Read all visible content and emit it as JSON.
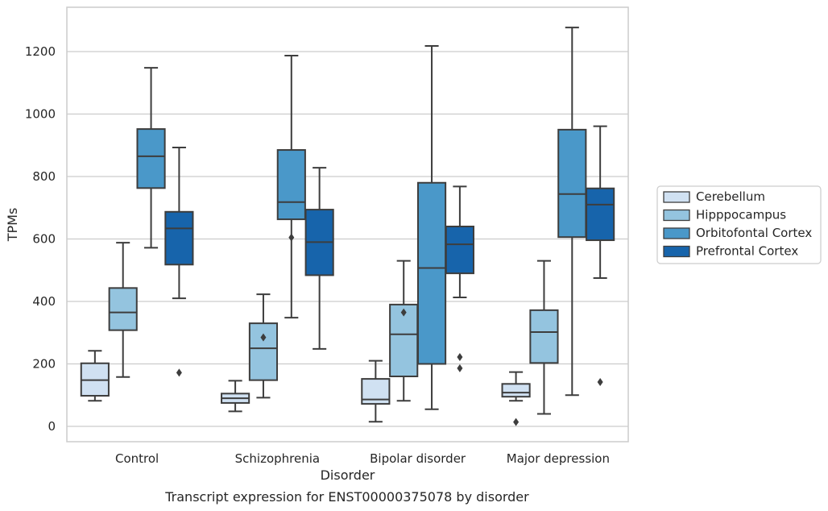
{
  "chart_data": {
    "type": "box",
    "title": "",
    "caption": "Transcript expression for ENST00000375078 by disorder",
    "xlabel": "Disorder",
    "ylabel": "TPMs",
    "ylim": [
      -50,
      1350
    ],
    "yticks": [
      0,
      200,
      400,
      600,
      800,
      1000,
      1200
    ],
    "grid": "horizontal",
    "legend_placement": "right",
    "categories": [
      "Control",
      "Schizophrenia",
      "Bipolar disorder",
      "Major depression"
    ],
    "series": [
      {
        "name": "Cerebellum",
        "color": "#d0e1f2",
        "boxes": [
          {
            "whisker_low": 82,
            "q1": 98,
            "median": 148,
            "q3": 202,
            "whisker_high": 242,
            "outliers": []
          },
          {
            "whisker_low": 48,
            "q1": 75,
            "median": 90,
            "q3": 105,
            "whisker_high": 146,
            "outliers": []
          },
          {
            "whisker_low": 15,
            "q1": 72,
            "median": 86,
            "q3": 152,
            "whisker_high": 210,
            "outliers": []
          },
          {
            "whisker_low": 82,
            "q1": 95,
            "median": 108,
            "q3": 136,
            "whisker_high": 174,
            "outliers": [
              14
            ]
          }
        ]
      },
      {
        "name": "Hipppocampus",
        "color": "#94c4df",
        "boxes": [
          {
            "whisker_low": 158,
            "q1": 308,
            "median": 365,
            "q3": 443,
            "whisker_high": 588,
            "outliers": []
          },
          {
            "whisker_low": 92,
            "q1": 148,
            "median": 250,
            "q3": 330,
            "whisker_high": 423,
            "outliers": [
              285
            ]
          },
          {
            "whisker_low": 82,
            "q1": 160,
            "median": 295,
            "q3": 390,
            "whisker_high": 530,
            "outliers": [
              365
            ]
          },
          {
            "whisker_low": 40,
            "q1": 203,
            "median": 302,
            "q3": 372,
            "whisker_high": 530,
            "outliers": []
          }
        ]
      },
      {
        "name": "Orbitofontal Cortex",
        "color": "#4a98c9",
        "boxes": [
          {
            "whisker_low": 572,
            "q1": 763,
            "median": 865,
            "q3": 952,
            "whisker_high": 1148,
            "outliers": []
          },
          {
            "whisker_low": 348,
            "q1": 663,
            "median": 718,
            "q3": 885,
            "whisker_high": 1187,
            "outliers": [
              605
            ]
          },
          {
            "whisker_low": 55,
            "q1": 200,
            "median": 507,
            "q3": 780,
            "whisker_high": 1218,
            "outliers": []
          },
          {
            "whisker_low": 100,
            "q1": 606,
            "median": 744,
            "q3": 950,
            "whisker_high": 1277,
            "outliers": []
          }
        ]
      },
      {
        "name": "Prefrontal Cortex",
        "color": "#1764ab",
        "boxes": [
          {
            "whisker_low": 410,
            "q1": 518,
            "median": 634,
            "q3": 687,
            "whisker_high": 893,
            "outliers": [
              172
            ]
          },
          {
            "whisker_low": 248,
            "q1": 484,
            "median": 590,
            "q3": 694,
            "whisker_high": 828,
            "outliers": []
          },
          {
            "whisker_low": 413,
            "q1": 490,
            "median": 583,
            "q3": 640,
            "whisker_high": 768,
            "outliers": [
              222,
              186
            ]
          },
          {
            "whisker_low": 475,
            "q1": 596,
            "median": 710,
            "q3": 762,
            "whisker_high": 961,
            "outliers": [
              142
            ]
          }
        ]
      }
    ]
  }
}
